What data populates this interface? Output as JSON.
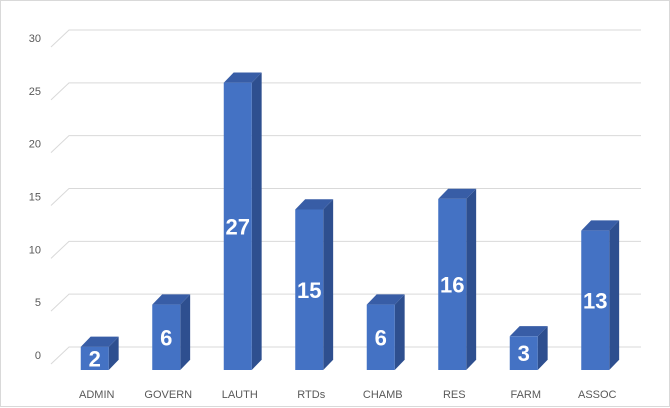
{
  "colors": {
    "bar_front": "#4472C4",
    "bar_side": "#2E4F8F",
    "bar_top": "#385DA6",
    "grid": "#d9d9d9",
    "value_label": "#ffffff"
  },
  "chart_data": {
    "type": "bar",
    "title": "",
    "xlabel": "",
    "ylabel": "",
    "categories": [
      "ADMIN",
      "GOVERN",
      "LAUTH",
      "RTDs",
      "CHAMB",
      "RES",
      "FARM",
      "ASSOC"
    ],
    "values": [
      2,
      6,
      27,
      15,
      6,
      16,
      3,
      13
    ],
    "ylim": [
      0,
      30
    ],
    "yticks": [
      0,
      5,
      10,
      15,
      20,
      25,
      30
    ],
    "grid": true,
    "legend": "none",
    "data_labels": true,
    "style": "3d-column"
  }
}
